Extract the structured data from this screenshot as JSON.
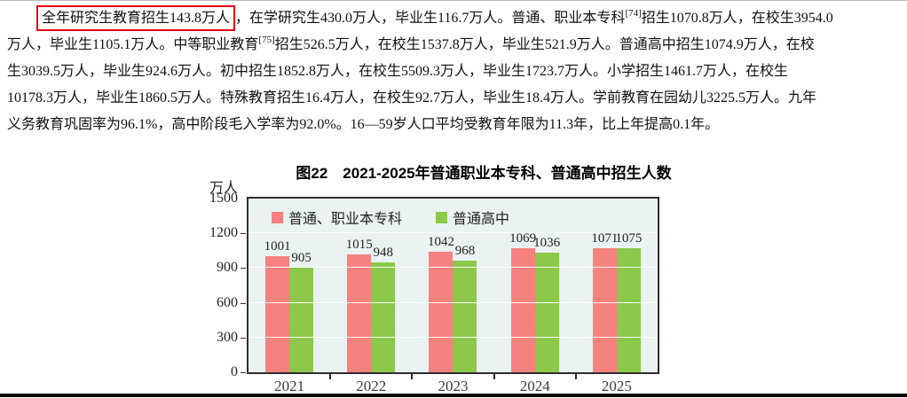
{
  "page": {
    "top_rule_color": "#bdbdbd",
    "bottom_rule_color": "#000000"
  },
  "paragraph": {
    "indent_highlight": {
      "text": "全年研究生教育招生143.8万人",
      "box_color": "#e60012"
    },
    "line1_after_box": "，在学研究生430.0万人，毕业生116.7万人。普通、职业本专科",
    "line1_footnote": "[74]",
    "line1_tail": "招生1070.8万人，在校生3954.0",
    "line2_before": "万人，毕业生1105.1万人。中等职业教育",
    "line2_footnote": "[75]",
    "line2_tail": "招生526.5万人，在校生1537.8万人，毕业生521.9万人。普通高中招生1074.9万人，在校",
    "line3": "生3039.5万人，毕业生924.6万人。初中招生1852.8万人，在校生5509.3万人，毕业生1723.7万人。小学招生1461.7万人，在校生",
    "line4": "10178.3万人，毕业生1860.5万人。特殊教育招生16.4万人，在校生92.7万人，毕业生18.4万人。学前教育在园幼儿3225.5万人。九年",
    "line5": "义务教育巩固率为96.1%，高中阶段毛入学率为92.0%。16—59岁人口平均受教育年限为11.3年，比上年提高0.1年。"
  },
  "chart_data": {
    "type": "bar",
    "figure_label": "图22",
    "title": "图22　2021-2025年普通职业本专科、普通高中招生人数",
    "unit_label": "万人",
    "categories": [
      "2021",
      "2022",
      "2023",
      "2024",
      "2025"
    ],
    "series": [
      {
        "name": "普通、职业本专科",
        "color": "#f5827f",
        "values": [
          1001,
          1015,
          1042,
          1069,
          1071
        ]
      },
      {
        "name": "普通高中",
        "color": "#8cc84a",
        "values": [
          905,
          948,
          968,
          1036,
          1075
        ]
      }
    ],
    "ylim": [
      0,
      1500
    ],
    "yticks": [
      0,
      300,
      600,
      900,
      1200,
      1500
    ],
    "grid": "horizontal-white",
    "legend_position": "inside-top-left",
    "plot_background": "#eaf3f1",
    "value_labels": true
  }
}
